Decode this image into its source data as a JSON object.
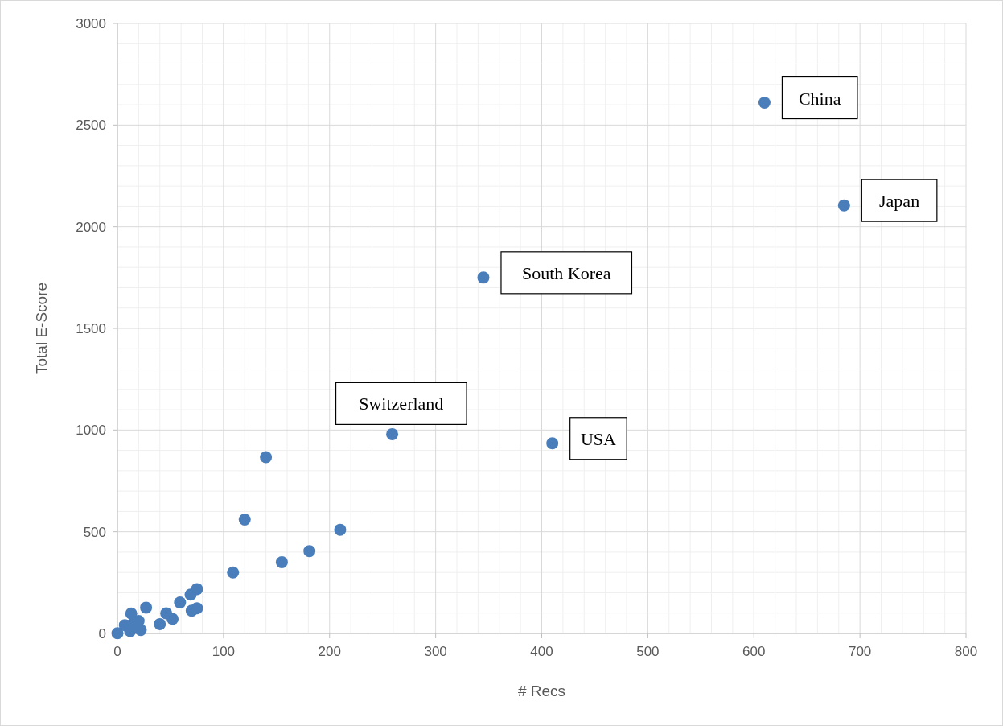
{
  "chart_data": {
    "type": "scatter",
    "xlabel": "# Recs",
    "ylabel": "Total E-Score",
    "xlim": [
      0,
      800
    ],
    "xticks": [
      0,
      100,
      200,
      300,
      400,
      500,
      600,
      700,
      800
    ],
    "ylim": [
      0,
      3000
    ],
    "yticks": [
      0,
      500,
      1000,
      1500,
      2000,
      2500,
      3000
    ],
    "grid": true,
    "marker": "circle",
    "series": [
      {
        "color": "#4a7ebb",
        "x": [
          610,
          685,
          345,
          259,
          410,
          140,
          120,
          210,
          181,
          155,
          109,
          75,
          69,
          59,
          75,
          70,
          27,
          46,
          52,
          40,
          13,
          20,
          22,
          12,
          7,
          0,
          14
        ],
        "values": [
          2610,
          2105,
          1750,
          980,
          935,
          867,
          560,
          510,
          405,
          350,
          300,
          218,
          191,
          152,
          124,
          112,
          127,
          99,
          71,
          46,
          98,
          61,
          17,
          12,
          41,
          1,
          45
        ]
      }
    ],
    "annotations": [
      {
        "text": "China",
        "x": 610,
        "y": 2610
      },
      {
        "text": "Japan",
        "x": 685,
        "y": 2105
      },
      {
        "text": "South Korea",
        "x": 345,
        "y": 1750
      },
      {
        "text": "Switzerland",
        "x": 259,
        "y": 980
      },
      {
        "text": "USA",
        "x": 410,
        "y": 935
      }
    ]
  }
}
